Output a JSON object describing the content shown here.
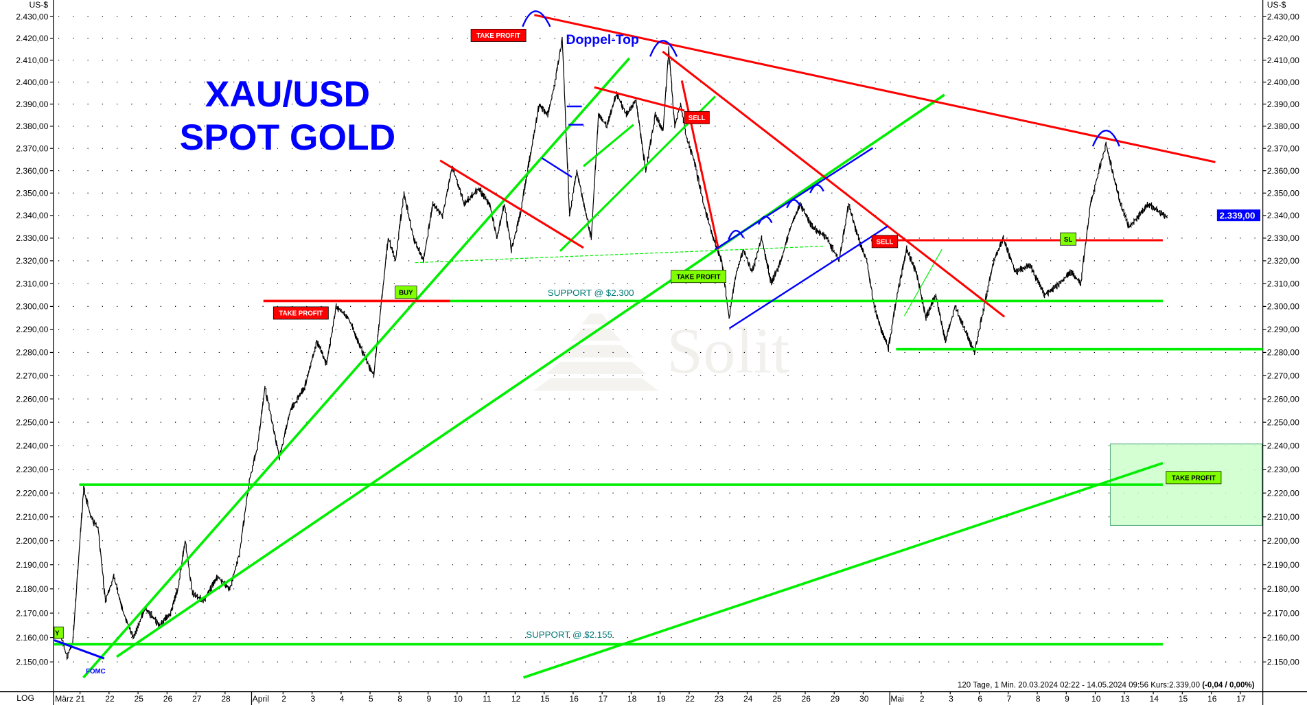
{
  "title": {
    "line1": "XAU/USD",
    "line2": "SPOT GOLD",
    "color": "#0000ff"
  },
  "axis": {
    "unit_left": "US-$",
    "unit_right": "US-$",
    "scale_label": "LOG"
  },
  "info": {
    "text": "120 Tage, 1 Min. 20.03.2024 02:22 - 14.05.2024 09:56  Kurs:2.339,00 ",
    "change": "(-0,04 / 0,00%)"
  },
  "current_price": {
    "label": "2.339,00",
    "value": 2339,
    "color": "#0000ff"
  },
  "watermark": "Solit",
  "annotations": {
    "take_profit_top": "TAKE PROFIT",
    "doppel_top": "Doppel-Top",
    "sell_1": "SELL",
    "sell_2": "SELL",
    "sl": "SL",
    "take_profit_mid": "TAKE PROFIT",
    "buy": "BUY",
    "take_profit_left": "TAKE PROFIT",
    "take_profit_right": "TAKE PROFIT",
    "support_2300": "SUPPORT @ $2.300",
    "support_2155": "SUPPORT @ $2.155",
    "fomc": "FOMC",
    "y_marker": "Y"
  },
  "colors": {
    "red": "#ff0000",
    "green": "#00ee00",
    "blue": "#0000ff",
    "price": "#000000"
  },
  "chart_data": {
    "type": "line",
    "title": "XAU/USD SPOT GOLD",
    "log_scale": true,
    "ylim": [
      2140,
      2435
    ],
    "grid": "dotted horizontal",
    "y_ticks": [
      "2.150,00",
      "2.160,00",
      "2.170,00",
      "2.180,00",
      "2.190,00",
      "2.200,00",
      "2.210,00",
      "2.220,00",
      "2.230,00",
      "2.240,00",
      "2.250,00",
      "2.260,00",
      "2.270,00",
      "2.280,00",
      "2.290,00",
      "2.300,00",
      "2.310,00",
      "2.320,00",
      "2.330,00",
      "2.340,00",
      "2.350,00",
      "2.360,00",
      "2.370,00",
      "2.380,00",
      "2.390,00",
      "2.400,00",
      "2.410,00",
      "2.420,00",
      "2.430,00"
    ],
    "x_ticks": [
      "März 21",
      "22",
      "25",
      "26",
      "27",
      "28",
      "April",
      "2",
      "3",
      "4",
      "5",
      "8",
      "9",
      "10",
      "11",
      "12",
      "15",
      "16",
      "17",
      "18",
      "19",
      "22",
      "23",
      "24",
      "25",
      "26",
      "29",
      "30",
      "Mai",
      "2",
      "3",
      "6",
      "7",
      "8",
      "9",
      "10",
      "13",
      "14",
      "15",
      "16",
      "17"
    ],
    "series": [
      {
        "points": [
          [
            "2024-03-20",
            2160
          ],
          [
            "2024-03-20",
            2152
          ],
          [
            "2024-03-20",
            2158
          ],
          [
            "2024-03-21",
            2222
          ],
          [
            "2024-03-21",
            2210
          ],
          [
            "2024-03-21",
            2205
          ],
          [
            "2024-03-21",
            2175
          ],
          [
            "2024-03-22",
            2185
          ],
          [
            "2024-03-22",
            2170
          ],
          [
            "2024-03-22",
            2160
          ],
          [
            "2024-03-25",
            2172
          ],
          [
            "2024-03-25",
            2165
          ],
          [
            "2024-03-26",
            2170
          ],
          [
            "2024-03-26",
            2180
          ],
          [
            "2024-03-26",
            2200
          ],
          [
            "2024-03-26",
            2178
          ],
          [
            "2024-03-27",
            2175
          ],
          [
            "2024-03-27",
            2185
          ],
          [
            "2024-03-28",
            2180
          ],
          [
            "2024-03-28",
            2195
          ],
          [
            "2024-03-28",
            2225
          ],
          [
            "2024-04-01",
            2240
          ],
          [
            "2024-04-01",
            2265
          ],
          [
            "2024-04-01",
            2250
          ],
          [
            "2024-04-01",
            2235
          ],
          [
            "2024-04-02",
            2255
          ],
          [
            "2024-04-02",
            2265
          ],
          [
            "2024-04-03",
            2285
          ],
          [
            "2024-04-03",
            2275
          ],
          [
            "2024-04-03",
            2300
          ],
          [
            "2024-04-04",
            2295
          ],
          [
            "2024-04-04",
            2280
          ],
          [
            "2024-04-05",
            2270
          ],
          [
            "2024-04-05",
            2300
          ],
          [
            "2024-04-05",
            2330
          ],
          [
            "2024-04-05",
            2320
          ],
          [
            "2024-04-08",
            2350
          ],
          [
            "2024-04-08",
            2330
          ],
          [
            "2024-04-08",
            2320
          ],
          [
            "2024-04-09",
            2345
          ],
          [
            "2024-04-09",
            2340
          ],
          [
            "2024-04-09",
            2362
          ],
          [
            "2024-04-10",
            2345
          ],
          [
            "2024-04-10",
            2352
          ],
          [
            "2024-04-11",
            2345
          ],
          [
            "2024-04-11",
            2330
          ],
          [
            "2024-04-11",
            2345
          ],
          [
            "2024-04-11",
            2325
          ],
          [
            "2024-04-12",
            2340
          ],
          [
            "2024-04-12",
            2365
          ],
          [
            "2024-04-12",
            2390
          ],
          [
            "2024-04-15",
            2385
          ],
          [
            "2024-04-15",
            2400
          ],
          [
            "2024-04-15",
            2420
          ],
          [
            "2024-04-15",
            2340
          ],
          [
            "2024-04-16",
            2360
          ],
          [
            "2024-04-16",
            2345
          ],
          [
            "2024-04-16",
            2330
          ],
          [
            "2024-04-16",
            2385
          ],
          [
            "2024-04-17",
            2380
          ],
          [
            "2024-04-17",
            2395
          ],
          [
            "2024-04-17",
            2385
          ],
          [
            "2024-04-18",
            2392
          ],
          [
            "2024-04-18",
            2360
          ],
          [
            "2024-04-18",
            2385
          ],
          [
            "2024-04-19",
            2378
          ],
          [
            "2024-04-19",
            2415
          ],
          [
            "2024-04-19",
            2380
          ],
          [
            "2024-04-19",
            2390
          ],
          [
            "2024-04-19",
            2375
          ],
          [
            "2024-04-22",
            2365
          ],
          [
            "2024-04-22",
            2345
          ],
          [
            "2024-04-22",
            2330
          ],
          [
            "2024-04-23",
            2320
          ],
          [
            "2024-04-23",
            2295
          ],
          [
            "2024-04-23",
            2315
          ],
          [
            "2024-04-23",
            2325
          ],
          [
            "2024-04-24",
            2315
          ],
          [
            "2024-04-24",
            2330
          ],
          [
            "2024-04-24",
            2310
          ],
          [
            "2024-04-25",
            2320
          ],
          [
            "2024-04-25",
            2335
          ],
          [
            "2024-04-25",
            2345
          ],
          [
            "2024-04-26",
            2335
          ],
          [
            "2024-04-26",
            2330
          ],
          [
            "2024-04-29",
            2320
          ],
          [
            "2024-04-29",
            2345
          ],
          [
            "2024-04-29",
            2330
          ],
          [
            "2024-04-30",
            2320
          ],
          [
            "2024-04-30",
            2300
          ],
          [
            "2024-04-30",
            2290
          ],
          [
            "2024-04-30",
            2282
          ],
          [
            "2024-05-01",
            2305
          ],
          [
            "2024-05-01",
            2325
          ],
          [
            "2024-05-01",
            2315
          ],
          [
            "2024-05-02",
            2295
          ],
          [
            "2024-05-02",
            2305
          ],
          [
            "2024-05-02",
            2285
          ],
          [
            "2024-05-03",
            2300
          ],
          [
            "2024-05-03",
            2290
          ],
          [
            "2024-05-03",
            2280
          ],
          [
            "2024-05-06",
            2300
          ],
          [
            "2024-05-06",
            2320
          ],
          [
            "2024-05-06",
            2330
          ],
          [
            "2024-05-07",
            2315
          ],
          [
            "2024-05-07",
            2318
          ],
          [
            "2024-05-08",
            2305
          ],
          [
            "2024-05-08",
            2310
          ],
          [
            "2024-05-09",
            2315
          ],
          [
            "2024-05-09",
            2310
          ],
          [
            "2024-05-09",
            2345
          ],
          [
            "2024-05-10",
            2360
          ],
          [
            "2024-05-10",
            2372
          ],
          [
            "2024-05-10",
            2358
          ],
          [
            "2024-05-10",
            2345
          ],
          [
            "2024-05-13",
            2335
          ],
          [
            "2024-05-13",
            2340
          ],
          [
            "2024-05-13",
            2345
          ],
          [
            "2024-05-14",
            2339
          ]
        ]
      }
    ]
  }
}
